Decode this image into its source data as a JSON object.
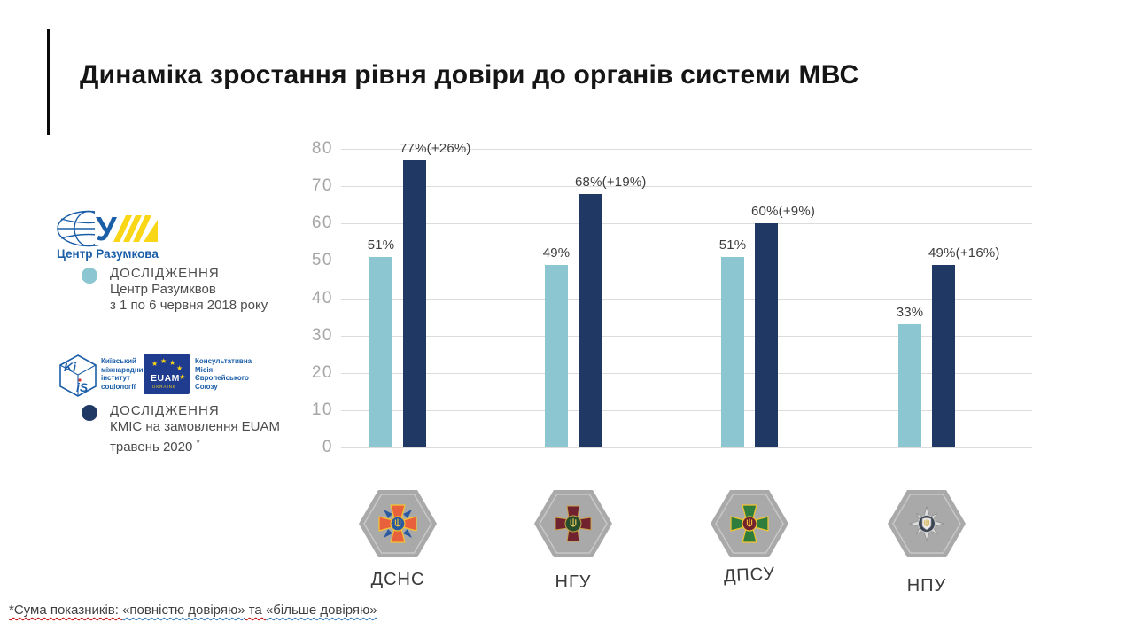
{
  "slide": {
    "title": "Динаміка зростання рівня довіри до органів системи МВС",
    "footnote": {
      "part1": "*Сума показників: ",
      "quote1": "«повністю довіряю»",
      "part2": " та ",
      "quote2": "«більше довіряю»"
    }
  },
  "legend": {
    "razumkov": {
      "logo_caption": "Центр Разумкова",
      "lines": [
        "ДОСЛІДЖЕННЯ",
        "Центр Разумквов",
        "з 1 по 6 червня 2018 року"
      ],
      "bullet_color": "#8CC7D1"
    },
    "kiis": {
      "logo_letters_top": "Ki",
      "logo_letters_bottom": "iS",
      "caption_lines": [
        "Київський",
        "міжнародний",
        "інститут",
        "соціології"
      ]
    },
    "euam": {
      "logo_text": "EUAM",
      "logo_subtext": "UKRAINE",
      "caption_lines": [
        "Консультативна",
        "Місія",
        "Європейського",
        "Союзу"
      ]
    },
    "kiis_euam": {
      "lines": [
        "ДОСЛІДЖЕННЯ",
        "КМІС на замовлення EUAM",
        "травень 2020"
      ],
      "asterisk": "*",
      "bullet_color": "#1F3864"
    }
  },
  "chart_data": {
    "type": "bar",
    "categories": [
      "ДСНС",
      "НГУ",
      "ДПСУ",
      "НПУ"
    ],
    "series": [
      {
        "name": "ДОСЛІДЖЕННЯ Центр Разумквов з 1 по 6 червня 2018 року",
        "color": "#8CC7D1",
        "values": [
          51,
          49,
          51,
          33
        ],
        "labels": [
          "51%",
          "49%",
          "51%",
          "33%"
        ]
      },
      {
        "name": "ДОСЛІДЖЕННЯ КМІС на замовлення EUAM травень 2020",
        "color": "#1F3864",
        "values": [
          77,
          68,
          60,
          49
        ],
        "labels": [
          "77%(+26%)",
          "68%(+19%)",
          "60%(+9%)",
          "49%(+16%)"
        ]
      }
    ],
    "ylim": [
      0,
      80
    ],
    "yticks": [
      0,
      10,
      20,
      30,
      40,
      50,
      60,
      70,
      80
    ],
    "grid": true,
    "legend_position": "left"
  },
  "colors": {
    "gridline": "#DCDCDC",
    "axis_label": "#A5A5A5",
    "hexagon": "#A9A9A9",
    "brand_blue": "#1B5EA8"
  }
}
